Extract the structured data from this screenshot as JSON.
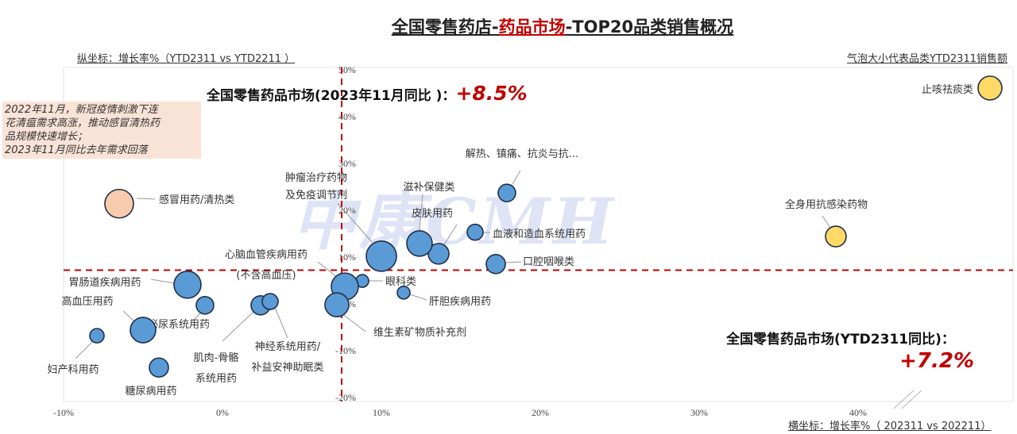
{
  "title": {
    "part1": "全国零售药店-",
    "part2": "药品市场",
    "part3": "-TOP20品类销售概况"
  },
  "y_axis_caption": "纵坐标：增长率%（YTD2311 vs YTD2211 ）",
  "x_axis_caption": "横坐标：增长率%（ 202311 vs 202211）",
  "bubble_legend": "气泡大小代表品类YTD2311销售额",
  "note": [
    "2022年11月，新冠疫情刺激下连",
    "花清瘟需求高涨，推动感冒清热药",
    "品规模快速增长；",
    "2023年11月同比去年需求回落"
  ],
  "annotation_month": {
    "label": "全国零售药品市场(2023年11月同比 )：",
    "value": "+8.5%"
  },
  "annotation_ytd": {
    "label": "全国零售药品市场(YTD2311同比)：",
    "value": "+7.2%"
  },
  "watermark": "中康CMH",
  "colors": {
    "blue": "#5b9bd5",
    "yellow": "#ffd966",
    "peach": "#f8cbad",
    "refline": "#c00000"
  },
  "chart_data": {
    "type": "scatter",
    "xlabel": "横坐标：增长率%（ 202311 vs 202211）",
    "ylabel": "纵坐标：增长率%（YTD2311 vs YTD2211 ）",
    "xlim": [
      -10,
      50
    ],
    "ylim": [
      -20,
      50
    ],
    "x_ticks": [
      "-10%",
      "0%",
      "10%",
      "20%",
      "30%",
      "40%"
    ],
    "x_tick_values": [
      -10,
      0,
      10,
      20,
      30,
      40
    ],
    "y_ticks": [
      "50%",
      "40%",
      "30%",
      "20%",
      "10%",
      "0%",
      "-10%",
      "-20%"
    ],
    "y_tick_values": [
      50,
      40,
      30,
      20,
      10,
      0,
      -10,
      -20
    ],
    "ref_x": 8.5,
    "ref_y": 7.2,
    "grid": false,
    "points": [
      {
        "name": "止咳祛痰类",
        "x": 48.3,
        "y": 46.1,
        "size": 225,
        "color": "yellow"
      },
      {
        "name": "全身用抗感染药物",
        "x": 38.6,
        "y": 14.4,
        "size": 169,
        "color": "yellow"
      },
      {
        "name": "感冒用药/清热类",
        "x": -6.5,
        "y": 21.4,
        "size": 324,
        "color": "peach"
      },
      {
        "name": "解热、镇痛、抗炎与抗...",
        "x": 17.9,
        "y": 23.7,
        "size": 121,
        "color": "blue"
      },
      {
        "name": "血液和造血系统用药",
        "x": 15.9,
        "y": 15.3,
        "size": 100,
        "color": "blue"
      },
      {
        "name": "口腔咽喉类",
        "x": 17.2,
        "y": 8.5,
        "size": 144,
        "color": "blue"
      },
      {
        "name": "皮肤用药",
        "x": 13.6,
        "y": 10.7,
        "size": 169,
        "color": "blue"
      },
      {
        "name": "滋补保健类",
        "x": 12.4,
        "y": 12.9,
        "size": 256,
        "color": "blue"
      },
      {
        "name": "肿瘤治疗药物|及免疫调节剂",
        "x": 10.0,
        "y": 10.2,
        "size": 361,
        "color": "blue"
      },
      {
        "name": "眼科类",
        "x": 8.8,
        "y": 4.9,
        "size": 64,
        "color": "blue"
      },
      {
        "name": "心脑血管疾病用药|(不含高血压)",
        "x": 7.7,
        "y": 3.7,
        "size": 289,
        "color": "blue"
      },
      {
        "name": "维生素矿物质补充剂",
        "x": 7.2,
        "y": -0.2,
        "size": 225,
        "color": "blue"
      },
      {
        "name": "肝胆疾病用药",
        "x": 11.4,
        "y": 2.4,
        "size": 64,
        "color": "blue"
      },
      {
        "name": "胃肠道疾病用药",
        "x": -2.2,
        "y": 4.1,
        "size": 289,
        "color": "blue"
      },
      {
        "name": "泌尿系统用药",
        "x": -1.1,
        "y": -0.3,
        "size": 121,
        "color": "blue"
      },
      {
        "name": "肌肉-骨骼|系统用药",
        "x": 2.4,
        "y": -0.3,
        "size": 144,
        "color": "blue"
      },
      {
        "name": "神经系统用药/|补益安神助眠类",
        "x": 3.0,
        "y": 0.5,
        "size": 100,
        "color": "blue"
      },
      {
        "name": "高血压用药",
        "x": -5.0,
        "y": -5.6,
        "size": 256,
        "color": "blue"
      },
      {
        "name": "妇产科用药",
        "x": -7.9,
        "y": -6.8,
        "size": 81,
        "color": "blue"
      },
      {
        "name": "糖尿病用药",
        "x": -4.0,
        "y": -13.6,
        "size": 144,
        "color": "blue"
      }
    ]
  }
}
